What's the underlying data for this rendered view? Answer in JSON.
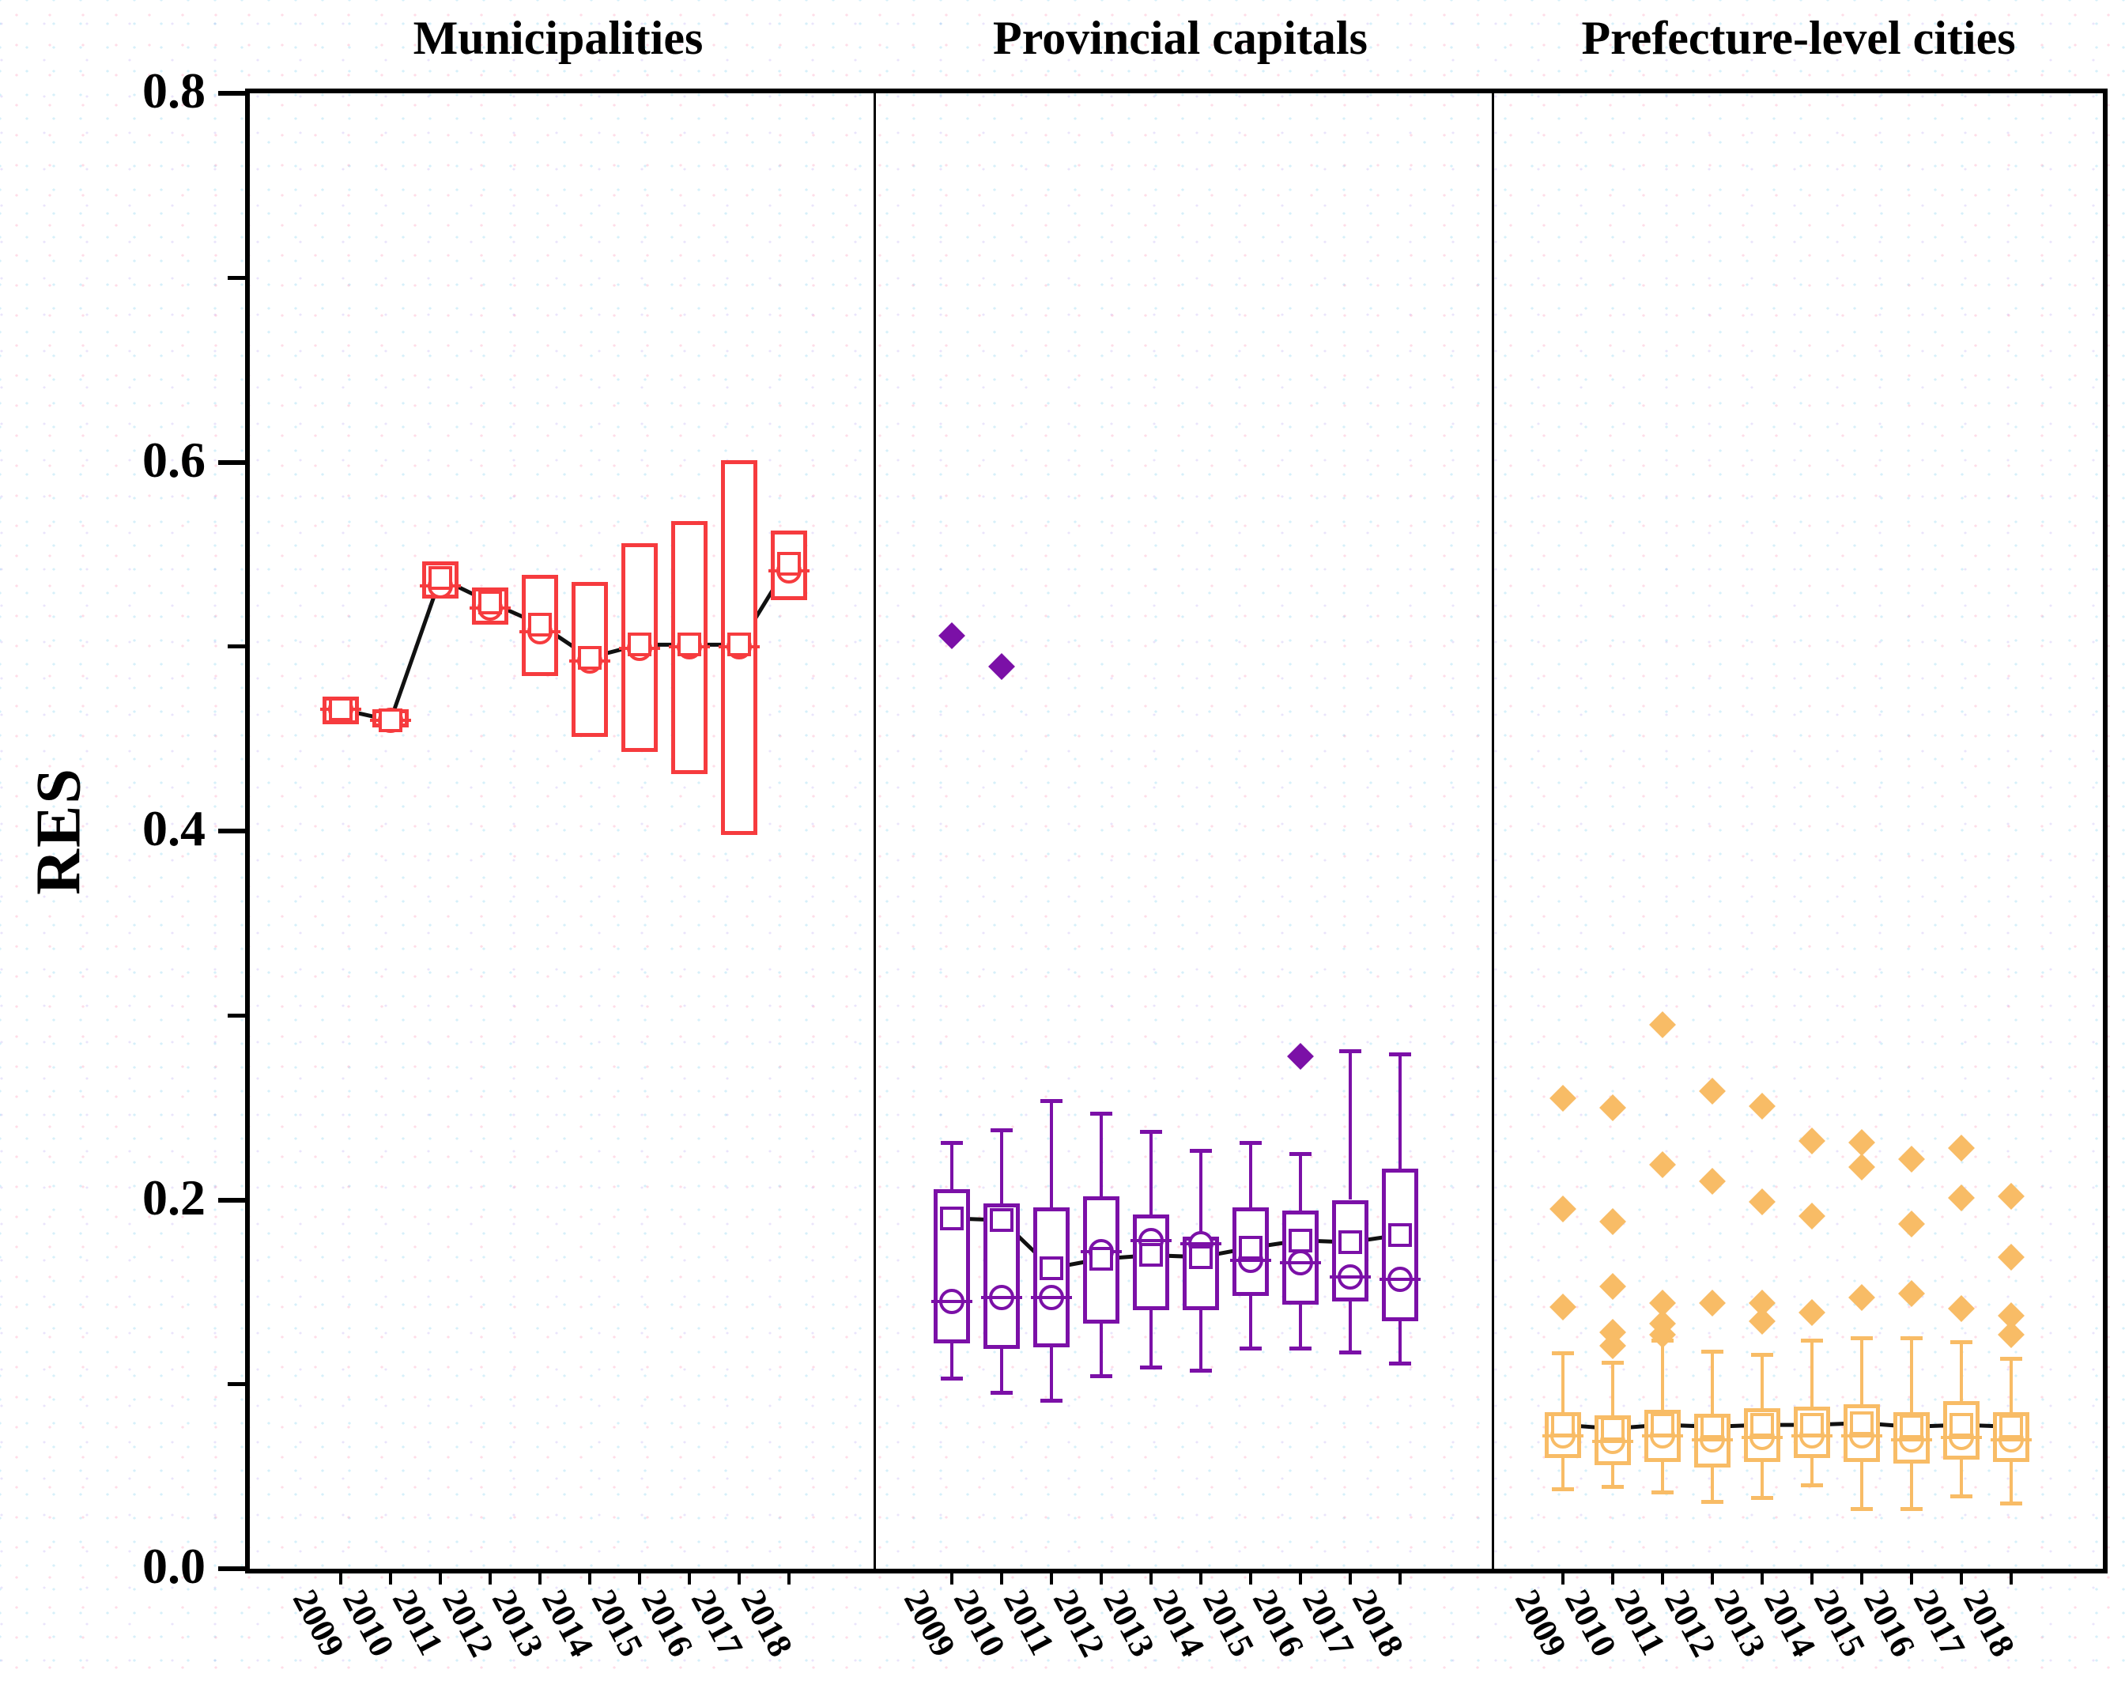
{
  "figure": {
    "ylabel": "RES",
    "y_tick_labels": [
      "0.0",
      "0.2",
      "0.4",
      "0.6",
      "0.8"
    ]
  },
  "chart_data": {
    "type": "box",
    "ylabel": "RES",
    "ylim": [
      0.0,
      0.8
    ],
    "y_major_ticks": [
      0.0,
      0.2,
      0.4,
      0.6,
      0.8
    ],
    "y_minor_ticks": [
      0.1,
      0.3,
      0.5,
      0.7
    ],
    "years": [
      "2009",
      "2010",
      "2011",
      "2012",
      "2013",
      "2014",
      "2015",
      "2016",
      "2017",
      "2018"
    ],
    "mean_line_color": "#111111",
    "markers": {
      "mean": "open-square",
      "median": "open-circle-with-line",
      "outlier": "filled-diamond"
    },
    "panels": [
      {
        "title": "Municipalities",
        "color": "#f63b3e",
        "boxes": [
          {
            "year": "2009",
            "q1": 0.458,
            "q3": 0.473,
            "median": 0.466,
            "mean": 0.466,
            "whisker_low": null,
            "whisker_high": null,
            "outliers": []
          },
          {
            "year": "2010",
            "q1": 0.456,
            "q3": 0.466,
            "median": 0.46,
            "mean": 0.46,
            "whisker_low": null,
            "whisker_high": null,
            "outliers": []
          },
          {
            "year": "2011",
            "q1": 0.526,
            "q3": 0.546,
            "median": 0.533,
            "mean": 0.537,
            "whisker_low": null,
            "whisker_high": null,
            "outliers": []
          },
          {
            "year": "2012",
            "q1": 0.512,
            "q3": 0.532,
            "median": 0.521,
            "mean": 0.524,
            "whisker_low": null,
            "whisker_high": null,
            "outliers": []
          },
          {
            "year": "2013",
            "q1": 0.484,
            "q3": 0.539,
            "median": 0.508,
            "mean": 0.512,
            "whisker_low": null,
            "whisker_high": null,
            "outliers": []
          },
          {
            "year": "2014",
            "q1": 0.451,
            "q3": 0.535,
            "median": 0.492,
            "mean": 0.494,
            "whisker_low": null,
            "whisker_high": null,
            "outliers": []
          },
          {
            "year": "2015",
            "q1": 0.443,
            "q3": 0.556,
            "median": 0.499,
            "mean": 0.501,
            "whisker_low": null,
            "whisker_high": null,
            "outliers": []
          },
          {
            "year": "2016",
            "q1": 0.431,
            "q3": 0.568,
            "median": 0.5,
            "mean": 0.501,
            "whisker_low": null,
            "whisker_high": null,
            "outliers": []
          },
          {
            "year": "2017",
            "q1": 0.398,
            "q3": 0.601,
            "median": 0.5,
            "mean": 0.501,
            "whisker_low": null,
            "whisker_high": null,
            "outliers": []
          },
          {
            "year": "2018",
            "q1": 0.525,
            "q3": 0.563,
            "median": 0.541,
            "mean": 0.545,
            "whisker_low": null,
            "whisker_high": null,
            "outliers": []
          }
        ]
      },
      {
        "title": "Provincial capitals",
        "color": "#7b10a7",
        "boxes": [
          {
            "year": "2009",
            "q1": 0.122,
            "q3": 0.206,
            "median": 0.145,
            "mean": 0.19,
            "whisker_low": 0.103,
            "whisker_high": 0.231,
            "outliers": [
              0.506
            ]
          },
          {
            "year": "2010",
            "q1": 0.119,
            "q3": 0.198,
            "median": 0.147,
            "mean": 0.189,
            "whisker_low": 0.095,
            "whisker_high": 0.238,
            "outliers": [
              0.489
            ]
          },
          {
            "year": "2011",
            "q1": 0.12,
            "q3": 0.196,
            "median": 0.147,
            "mean": 0.163,
            "whisker_low": 0.091,
            "whisker_high": 0.254,
            "outliers": []
          },
          {
            "year": "2012",
            "q1": 0.133,
            "q3": 0.202,
            "median": 0.172,
            "mean": 0.168,
            "whisker_low": 0.104,
            "whisker_high": 0.247,
            "outliers": []
          },
          {
            "year": "2013",
            "q1": 0.14,
            "q3": 0.192,
            "median": 0.178,
            "mean": 0.17,
            "whisker_low": 0.109,
            "whisker_high": 0.237,
            "outliers": []
          },
          {
            "year": "2014",
            "q1": 0.14,
            "q3": 0.18,
            "median": 0.176,
            "mean": 0.169,
            "whisker_low": 0.107,
            "whisker_high": 0.227,
            "outliers": []
          },
          {
            "year": "2015",
            "q1": 0.148,
            "q3": 0.196,
            "median": 0.167,
            "mean": 0.174,
            "whisker_low": 0.119,
            "whisker_high": 0.231,
            "outliers": []
          },
          {
            "year": "2016",
            "q1": 0.143,
            "q3": 0.194,
            "median": 0.166,
            "mean": 0.178,
            "whisker_low": 0.119,
            "whisker_high": 0.225,
            "outliers": [
              0.278
            ]
          },
          {
            "year": "2017",
            "q1": 0.145,
            "q3": 0.2,
            "median": 0.158,
            "mean": 0.177,
            "whisker_low": 0.117,
            "whisker_high": 0.281,
            "outliers": []
          },
          {
            "year": "2018",
            "q1": 0.134,
            "q3": 0.217,
            "median": 0.157,
            "mean": 0.181,
            "whisker_low": 0.111,
            "whisker_high": 0.279,
            "outliers": []
          }
        ]
      },
      {
        "title": "Prefecture-level cities",
        "color": "#f8bc66",
        "boxes": [
          {
            "year": "2009",
            "q1": 0.06,
            "q3": 0.085,
            "median": 0.072,
            "mean": 0.078,
            "whisker_low": 0.043,
            "whisker_high": 0.117,
            "outliers": [
              0.255,
              0.195,
              0.142
            ]
          },
          {
            "year": "2010",
            "q1": 0.056,
            "q3": 0.083,
            "median": 0.069,
            "mean": 0.076,
            "whisker_low": 0.044,
            "whisker_high": 0.112,
            "outliers": [
              0.25,
              0.188,
              0.153,
              0.128,
              0.121
            ]
          },
          {
            "year": "2011",
            "q1": 0.058,
            "q3": 0.086,
            "median": 0.072,
            "mean": 0.078,
            "whisker_low": 0.041,
            "whisker_high": 0.124,
            "outliers": [
              0.295,
              0.219,
              0.144,
              0.133,
              0.127
            ]
          },
          {
            "year": "2012",
            "q1": 0.055,
            "q3": 0.084,
            "median": 0.07,
            "mean": 0.077,
            "whisker_low": 0.036,
            "whisker_high": 0.118,
            "outliers": [
              0.259,
              0.21,
              0.144
            ]
          },
          {
            "year": "2013",
            "q1": 0.058,
            "q3": 0.087,
            "median": 0.071,
            "mean": 0.078,
            "whisker_low": 0.038,
            "whisker_high": 0.116,
            "outliers": [
              0.251,
              0.199,
              0.144,
              0.134
            ]
          },
          {
            "year": "2014",
            "q1": 0.06,
            "q3": 0.088,
            "median": 0.072,
            "mean": 0.078,
            "whisker_low": 0.045,
            "whisker_high": 0.124,
            "outliers": [
              0.232,
              0.191,
              0.139
            ]
          },
          {
            "year": "2015",
            "q1": 0.058,
            "q3": 0.089,
            "median": 0.072,
            "mean": 0.079,
            "whisker_low": 0.032,
            "whisker_high": 0.125,
            "outliers": [
              0.231,
              0.218,
              0.147
            ]
          },
          {
            "year": "2016",
            "q1": 0.057,
            "q3": 0.085,
            "median": 0.07,
            "mean": 0.077,
            "whisker_low": 0.032,
            "whisker_high": 0.125,
            "outliers": [
              0.222,
              0.187,
              0.149
            ]
          },
          {
            "year": "2017",
            "q1": 0.059,
            "q3": 0.091,
            "median": 0.071,
            "mean": 0.078,
            "whisker_low": 0.039,
            "whisker_high": 0.123,
            "outliers": [
              0.228,
              0.201,
              0.141
            ]
          },
          {
            "year": "2018",
            "q1": 0.058,
            "q3": 0.085,
            "median": 0.07,
            "mean": 0.077,
            "whisker_low": 0.035,
            "whisker_high": 0.114,
            "outliers": [
              0.202,
              0.169,
              0.137,
              0.127
            ]
          }
        ]
      }
    ]
  }
}
